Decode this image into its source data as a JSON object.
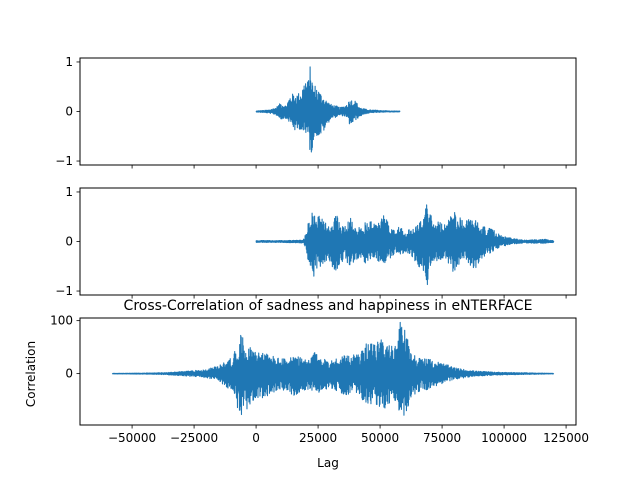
{
  "chart_data": [
    {
      "type": "line",
      "title": "",
      "xlabel": "",
      "ylabel": "",
      "ylim": [
        -1.08,
        1.08
      ],
      "yticks": [
        -1,
        0,
        1
      ],
      "yticklabels": [
        "−1",
        "0",
        "1"
      ],
      "xlim": [
        -71000,
        129000
      ],
      "show_xticklabels": false,
      "grid": false,
      "series": [
        {
          "color": "#1f77b4",
          "envelope": {
            "x": [
              0,
              5000,
              8000,
              10000,
              12000,
              14000,
              16000,
              18000,
              20000,
              21000,
              22000,
              23000,
              24000,
              26000,
              28000,
              30000,
              32000,
              34000,
              36000,
              38000,
              40000,
              42000,
              44000,
              46000,
              48000,
              50000,
              52000,
              54000,
              56000,
              58000
            ],
            "max": [
              0.01,
              0.03,
              0.08,
              0.18,
              0.12,
              0.36,
              0.35,
              0.4,
              0.7,
              0.6,
              1.0,
              0.5,
              0.55,
              0.38,
              0.25,
              0.15,
              0.12,
              0.08,
              0.12,
              0.25,
              0.22,
              0.08,
              0.05,
              0.03,
              0.03,
              0.02,
              0.02,
              0.01,
              0.01,
              0.01
            ],
            "min": [
              -0.01,
              -0.03,
              -0.07,
              -0.16,
              -0.14,
              -0.25,
              -0.43,
              -0.35,
              -0.57,
              -0.4,
              -0.98,
              -0.62,
              -0.5,
              -0.5,
              -0.35,
              -0.15,
              -0.12,
              -0.08,
              -0.1,
              -0.3,
              -0.18,
              -0.1,
              -0.05,
              -0.03,
              -0.02,
              -0.02,
              -0.01,
              -0.01,
              -0.01,
              -0.01
            ]
          }
        }
      ]
    },
    {
      "type": "line",
      "title": "",
      "xlabel": "",
      "ylabel": "",
      "ylim": [
        -1.08,
        1.08
      ],
      "yticks": [
        -1,
        0,
        1
      ],
      "yticklabels": [
        "−1",
        "0",
        "1"
      ],
      "xlim": [
        -71000,
        129000
      ],
      "show_xticklabels": false,
      "grid": false,
      "series": [
        {
          "color": "#1f77b4",
          "envelope": {
            "x": [
              0,
              10000,
              19000,
              20000,
              21000,
              22000,
              23000,
              24000,
              26000,
              28000,
              30000,
              32000,
              34000,
              36000,
              38000,
              40000,
              42000,
              44000,
              46000,
              48000,
              50000,
              52000,
              54000,
              56000,
              58000,
              60000,
              62000,
              64000,
              66000,
              68000,
              69000,
              70000,
              71000,
              72000,
              74000,
              76000,
              78000,
              80000,
              82000,
              84000,
              86000,
              88000,
              90000,
              92000,
              94000,
              96000,
              98000,
              100000,
              102000,
              104000,
              106000,
              108000,
              110000,
              112000,
              114000,
              116000,
              118000,
              120000
            ],
            "max": [
              0.02,
              0.02,
              0.03,
              0.15,
              0.4,
              0.5,
              0.8,
              0.55,
              0.5,
              0.38,
              0.3,
              0.6,
              0.35,
              0.35,
              0.55,
              0.3,
              0.28,
              0.4,
              0.45,
              0.4,
              0.45,
              0.55,
              0.35,
              0.25,
              0.3,
              0.2,
              0.25,
              0.3,
              0.4,
              0.5,
              1.0,
              0.65,
              0.55,
              0.45,
              0.4,
              0.35,
              0.45,
              0.7,
              0.5,
              0.4,
              0.5,
              0.55,
              0.35,
              0.3,
              0.28,
              0.22,
              0.15,
              0.1,
              0.08,
              0.06,
              0.04,
              0.03,
              0.03,
              0.04,
              0.03,
              0.06,
              0.03,
              0.02
            ],
            "min": [
              -0.02,
              -0.02,
              -0.03,
              -0.12,
              -0.4,
              -0.5,
              -0.9,
              -0.55,
              -0.5,
              -0.4,
              -0.48,
              -0.6,
              -0.45,
              -0.38,
              -0.5,
              -0.4,
              -0.3,
              -0.45,
              -0.4,
              -0.35,
              -0.42,
              -0.45,
              -0.35,
              -0.25,
              -0.3,
              -0.2,
              -0.25,
              -0.4,
              -0.55,
              -0.7,
              -1.02,
              -0.55,
              -0.6,
              -0.45,
              -0.4,
              -0.38,
              -0.5,
              -0.65,
              -0.45,
              -0.4,
              -0.5,
              -0.6,
              -0.4,
              -0.3,
              -0.25,
              -0.18,
              -0.12,
              -0.1,
              -0.07,
              -0.05,
              -0.04,
              -0.03,
              -0.03,
              -0.04,
              -0.03,
              -0.05,
              -0.03,
              -0.02
            ]
          }
        }
      ]
    },
    {
      "type": "line",
      "title": "Cross-Correlation of sadness and happiness in eNTERFACE",
      "xlabel": "Lag",
      "ylabel": "Correlation",
      "ylim": [
        -97,
        105
      ],
      "yticks": [
        0,
        100
      ],
      "yticklabels": [
        "0",
        "100"
      ],
      "xlim": [
        -71000,
        129000
      ],
      "xticks": [
        -50000,
        -25000,
        0,
        25000,
        50000,
        75000,
        100000,
        125000
      ],
      "xticklabels": [
        "−50000",
        "−25000",
        "0",
        "25000",
        "50000",
        "75000",
        "100000",
        "125000"
      ],
      "show_xticklabels": true,
      "grid": false,
      "series": [
        {
          "color": "#1f77b4",
          "envelope": {
            "x": [
              -58000,
              -50000,
              -45000,
              -40000,
              -35000,
              -30000,
              -25000,
              -20000,
              -15000,
              -10000,
              -8000,
              -6000,
              -4000,
              -2000,
              0,
              3000,
              6000,
              9000,
              12000,
              15000,
              18000,
              21000,
              24000,
              27000,
              30000,
              33000,
              36000,
              39000,
              42000,
              45000,
              48000,
              51000,
              54000,
              57000,
              58000,
              60000,
              63000,
              66000,
              69000,
              72000,
              75000,
              78000,
              81000,
              84000,
              88000,
              92000,
              96000,
              100000,
              105000,
              110000,
              115000,
              120000
            ],
            "max": [
              0.5,
              0.8,
              1.0,
              1.5,
              2.5,
              4.0,
              6.0,
              8.0,
              15,
              30,
              50,
              75,
              60,
              50,
              45,
              40,
              35,
              30,
              28,
              35,
              30,
              25,
              42,
              28,
              25,
              30,
              38,
              35,
              40,
              60,
              55,
              70,
              55,
              50,
              100,
              85,
              40,
              30,
              28,
              25,
              20,
              15,
              10,
              8,
              5,
              4,
              3,
              2.5,
              2,
              1.5,
              1,
              0.5
            ],
            "min": [
              -0.5,
              -0.8,
              -1.0,
              -1.5,
              -2.5,
              -4.0,
              -6.0,
              -8.0,
              -15,
              -35,
              -60,
              -80,
              -70,
              -60,
              -50,
              -45,
              -40,
              -35,
              -30,
              -42,
              -35,
              -30,
              -40,
              -30,
              -28,
              -35,
              -40,
              -38,
              -45,
              -60,
              -55,
              -75,
              -60,
              -50,
              -90,
              -80,
              -45,
              -35,
              -30,
              -25,
              -20,
              -15,
              -10,
              -8,
              -5,
              -4,
              -3,
              -2.5,
              -2,
              -1.5,
              -1,
              -0.5
            ]
          }
        }
      ]
    }
  ]
}
